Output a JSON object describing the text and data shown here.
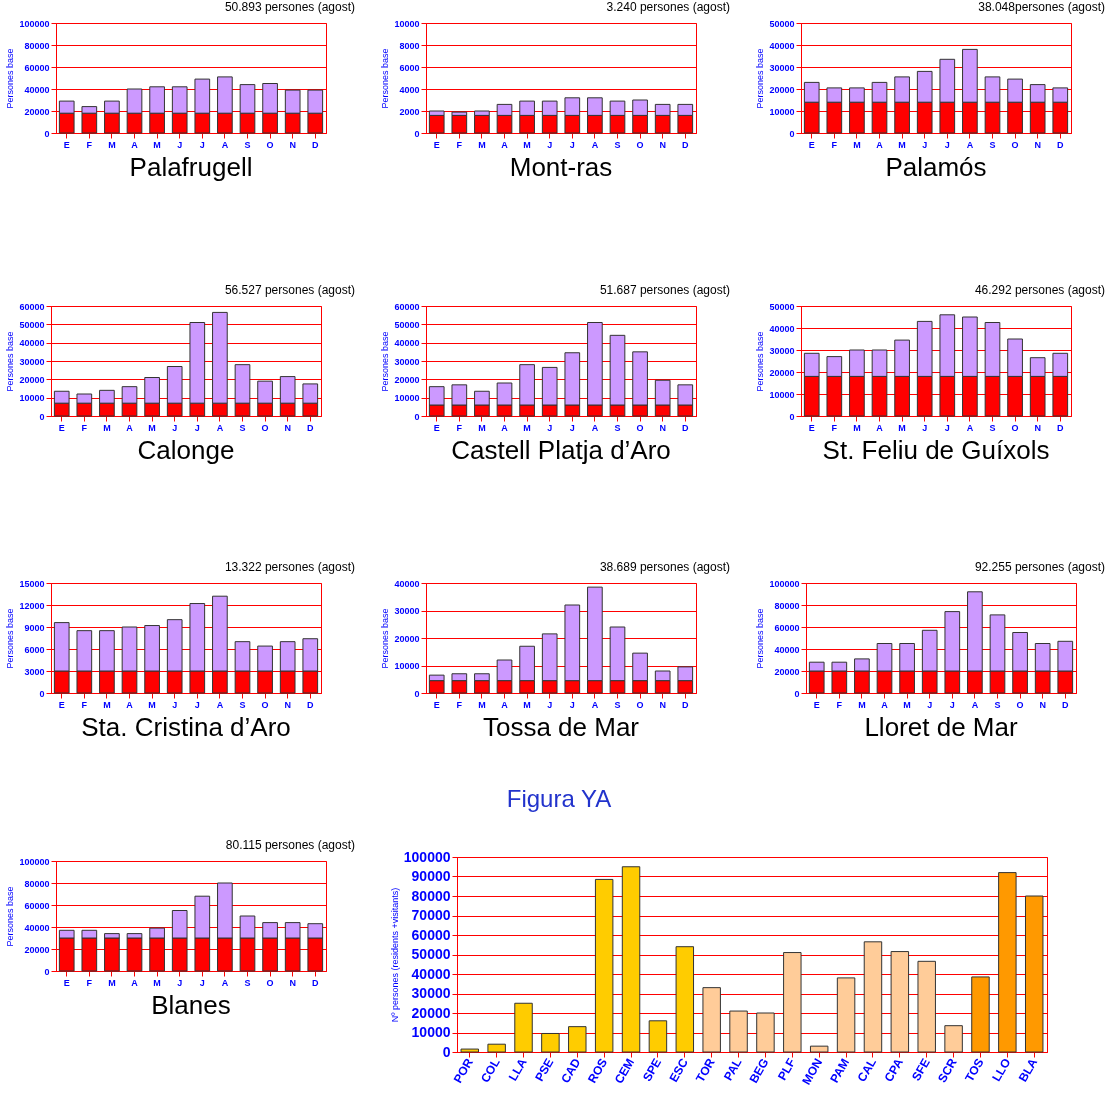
{
  "chart_data": [
    {
      "type": "bar",
      "title": "Palafrugell",
      "subtitle": "50.893 persones (agost)",
      "ylabel": "Persones base",
      "categories": [
        "E",
        "F",
        "M",
        "A",
        "M",
        "J",
        "J",
        "A",
        "S",
        "O",
        "N",
        "D"
      ],
      "stacked": true,
      "ylim": [
        0,
        100000
      ],
      "yticks": [
        0,
        20000,
        40000,
        60000,
        80000,
        100000
      ],
      "grid": "y",
      "series": [
        {
          "color": "#ff0000",
          "values": [
            18000,
            18000,
            18000,
            18000,
            18000,
            18000,
            18000,
            18000,
            18000,
            18000,
            18000,
            18000
          ]
        },
        {
          "color": "#cc99ff",
          "values": [
            11000,
            6000,
            11000,
            22000,
            24000,
            24000,
            31000,
            33000,
            26000,
            27000,
            21000,
            21000
          ]
        }
      ]
    },
    {
      "type": "bar",
      "title": "Mont-ras",
      "subtitle": "3.240 persones (agost)",
      "ylabel": "Persones base",
      "categories": [
        "E",
        "F",
        "M",
        "A",
        "M",
        "J",
        "J",
        "A",
        "S",
        "O",
        "N",
        "D"
      ],
      "stacked": true,
      "ylim": [
        0,
        10000
      ],
      "yticks": [
        0,
        2000,
        4000,
        6000,
        8000,
        10000
      ],
      "grid": "y",
      "series": [
        {
          "color": "#ff0000",
          "values": [
            1600,
            1600,
            1600,
            1600,
            1600,
            1600,
            1600,
            1600,
            1600,
            1600,
            1600,
            1600
          ]
        },
        {
          "color": "#cc99ff",
          "values": [
            400,
            300,
            400,
            1000,
            1300,
            1300,
            1600,
            1600,
            1300,
            1400,
            1000,
            1000
          ]
        }
      ]
    },
    {
      "type": "bar",
      "title": "Palamós",
      "subtitle": "38.048persones (agost)",
      "ylabel": "Persones base",
      "categories": [
        "E",
        "F",
        "M",
        "A",
        "M",
        "J",
        "J",
        "A",
        "S",
        "O",
        "N",
        "D"
      ],
      "stacked": true,
      "ylim": [
        0,
        50000
      ],
      "yticks": [
        0,
        10000,
        20000,
        30000,
        40000,
        50000
      ],
      "grid": "y",
      "series": [
        {
          "color": "#ff0000",
          "values": [
            14000,
            14000,
            14000,
            14000,
            14000,
            14000,
            14000,
            14000,
            14000,
            14000,
            14000,
            14000
          ]
        },
        {
          "color": "#cc99ff",
          "values": [
            9000,
            6500,
            6500,
            9000,
            11500,
            14000,
            19500,
            24000,
            11500,
            10500,
            8000,
            6500
          ]
        }
      ]
    },
    {
      "type": "bar",
      "title": "Calonge",
      "subtitle": "56.527 persones (agost)",
      "ylabel": "Persones base",
      "categories": [
        "E",
        "F",
        "M",
        "A",
        "M",
        "J",
        "J",
        "A",
        "S",
        "O",
        "N",
        "D"
      ],
      "stacked": true,
      "ylim": [
        0,
        60000
      ],
      "yticks": [
        0,
        10000,
        20000,
        30000,
        40000,
        50000,
        60000
      ],
      "grid": "y",
      "series": [
        {
          "color": "#ff0000",
          "values": [
            7000,
            7000,
            7000,
            7000,
            7000,
            7000,
            7000,
            7000,
            7000,
            7000,
            7000,
            7000
          ]
        },
        {
          "color": "#cc99ff",
          "values": [
            6500,
            5000,
            7000,
            9000,
            14000,
            20000,
            44000,
            49500,
            21000,
            12000,
            14500,
            10500
          ]
        }
      ]
    },
    {
      "type": "bar",
      "title": "Castell Platja d’Aro",
      "subtitle": "51.687 persones (agost)",
      "ylabel": "Persones base",
      "categories": [
        "E",
        "F",
        "M",
        "A",
        "M",
        "J",
        "J",
        "A",
        "S",
        "O",
        "N",
        "D"
      ],
      "stacked": true,
      "ylim": [
        0,
        60000
      ],
      "yticks": [
        0,
        10000,
        20000,
        30000,
        40000,
        50000,
        60000
      ],
      "grid": "y",
      "series": [
        {
          "color": "#ff0000",
          "values": [
            6000,
            6000,
            6000,
            6000,
            6000,
            6000,
            6000,
            6000,
            6000,
            6000,
            6000,
            6000
          ]
        },
        {
          "color": "#cc99ff",
          "values": [
            10000,
            11000,
            7500,
            12000,
            22000,
            20500,
            28500,
            45000,
            38000,
            29000,
            13500,
            11000
          ]
        }
      ]
    },
    {
      "type": "bar",
      "title": "St. Feliu de Guíxols",
      "subtitle": "46.292 persones (agost)",
      "ylabel": "Persones base",
      "categories": [
        "E",
        "F",
        "M",
        "A",
        "M",
        "J",
        "J",
        "A",
        "S",
        "O",
        "N",
        "D"
      ],
      "stacked": true,
      "ylim": [
        0,
        50000
      ],
      "yticks": [
        0,
        10000,
        20000,
        30000,
        40000,
        50000
      ],
      "grid": "y",
      "series": [
        {
          "color": "#ff0000",
          "values": [
            18000,
            18000,
            18000,
            18000,
            18000,
            18000,
            18000,
            18000,
            18000,
            18000,
            18000,
            18000
          ]
        },
        {
          "color": "#cc99ff",
          "values": [
            10500,
            9000,
            12000,
            12000,
            16500,
            25000,
            28000,
            27000,
            24500,
            17000,
            8500,
            10500
          ]
        }
      ]
    },
    {
      "type": "bar",
      "title": "Sta. Cristina d’Aro",
      "subtitle": "13.322 persones (agost)",
      "ylabel": "Persones base",
      "categories": [
        "E",
        "F",
        "M",
        "A",
        "M",
        "J",
        "J",
        "A",
        "S",
        "O",
        "N",
        "D"
      ],
      "stacked": true,
      "ylim": [
        0,
        15000
      ],
      "yticks": [
        0,
        3000,
        6000,
        9000,
        12000,
        15000
      ],
      "grid": "y",
      "series": [
        {
          "color": "#ff0000",
          "values": [
            3000,
            3000,
            3000,
            3000,
            3000,
            3000,
            3000,
            3000,
            3000,
            3000,
            3000,
            3000
          ]
        },
        {
          "color": "#cc99ff",
          "values": [
            6600,
            5500,
            5500,
            6000,
            6200,
            7000,
            9200,
            10200,
            4000,
            3400,
            4000,
            4400
          ]
        }
      ]
    },
    {
      "type": "bar",
      "title": "Tossa de Mar",
      "subtitle": "38.689 persones (agost)",
      "ylabel": "Persones base",
      "categories": [
        "E",
        "F",
        "M",
        "A",
        "M",
        "J",
        "J",
        "A",
        "S",
        "O",
        "N",
        "D"
      ],
      "stacked": true,
      "ylim": [
        0,
        40000
      ],
      "yticks": [
        0,
        10000,
        20000,
        30000,
        40000
      ],
      "grid": "y",
      "series": [
        {
          "color": "#ff0000",
          "values": [
            4500,
            4500,
            4500,
            4500,
            4500,
            4500,
            4500,
            4500,
            4500,
            4500,
            4500,
            4500
          ]
        },
        {
          "color": "#cc99ff",
          "values": [
            2000,
            2500,
            2500,
            7500,
            12500,
            17000,
            27500,
            34000,
            19500,
            10000,
            3500,
            5000
          ]
        }
      ]
    },
    {
      "type": "bar",
      "title": "Lloret de Mar",
      "subtitle": "92.255 persones (agost)",
      "ylabel": "Persones base",
      "categories": [
        "E",
        "F",
        "M",
        "A",
        "M",
        "J",
        "J",
        "A",
        "S",
        "O",
        "N",
        "D"
      ],
      "stacked": true,
      "ylim": [
        0,
        100000
      ],
      "yticks": [
        0,
        20000,
        40000,
        60000,
        80000,
        100000
      ],
      "grid": "y",
      "series": [
        {
          "color": "#ff0000",
          "values": [
            20000,
            20000,
            20000,
            20000,
            20000,
            20000,
            20000,
            20000,
            20000,
            20000,
            20000,
            20000
          ]
        },
        {
          "color": "#cc99ff",
          "values": [
            8000,
            8000,
            11000,
            25000,
            25000,
            37000,
            54000,
            72000,
            51000,
            35000,
            25000,
            27000
          ]
        }
      ]
    },
    {
      "type": "bar",
      "title": "Blanes",
      "subtitle": "80.115 persones (agost)",
      "ylabel": "Persones base",
      "categories": [
        "E",
        "F",
        "M",
        "A",
        "M",
        "J",
        "J",
        "A",
        "S",
        "O",
        "N",
        "D"
      ],
      "stacked": true,
      "ylim": [
        0,
        100000
      ],
      "yticks": [
        0,
        20000,
        40000,
        60000,
        80000,
        100000
      ],
      "grid": "y",
      "series": [
        {
          "color": "#ff0000",
          "values": [
            30000,
            30000,
            30000,
            30000,
            30000,
            30000,
            30000,
            30000,
            30000,
            30000,
            30000,
            30000
          ]
        },
        {
          "color": "#cc99ff",
          "values": [
            7000,
            7000,
            4000,
            4000,
            9000,
            25000,
            38000,
            50000,
            20000,
            14000,
            14000,
            13000
          ]
        }
      ]
    },
    {
      "type": "bar",
      "ylabel": "Nº persones (residents +visitants)",
      "annotations": [
        "Figura YA"
      ],
      "categories": [
        "POR",
        "COL",
        "LLA",
        "PSE",
        "CAD",
        "ROS",
        "CEM",
        "SPE",
        "ESC",
        "TOR",
        "PAL",
        "BEG",
        "PLF",
        "MON",
        "PAM",
        "CAL",
        "CPA",
        "SFE",
        "SCR",
        "TOS",
        "LLO",
        "BLA"
      ],
      "values": [
        1500,
        4000,
        25000,
        9500,
        13000,
        88500,
        95000,
        16000,
        54000,
        33000,
        21000,
        20000,
        51000,
        3000,
        38000,
        56500,
        51500,
        46500,
        13500,
        38500,
        92000,
        80000
      ],
      "colors": [
        "#ffcc00",
        "#ffcc00",
        "#ffcc00",
        "#ffcc00",
        "#ffcc00",
        "#ffcc00",
        "#ffcc00",
        "#ffcc00",
        "#ffcc00",
        "#ffcc99",
        "#ffcc99",
        "#ffcc99",
        "#ffcc99",
        "#ffcc99",
        "#ffcc99",
        "#ffcc99",
        "#ffcc99",
        "#ffcc99",
        "#ffcc99",
        "#ff9900",
        "#ff9900",
        "#ff9900"
      ],
      "ylim": [
        0,
        100000
      ],
      "yticks": [
        0,
        10000,
        20000,
        30000,
        40000,
        50000,
        60000,
        70000,
        80000,
        90000,
        100000
      ],
      "grid": "y"
    }
  ]
}
